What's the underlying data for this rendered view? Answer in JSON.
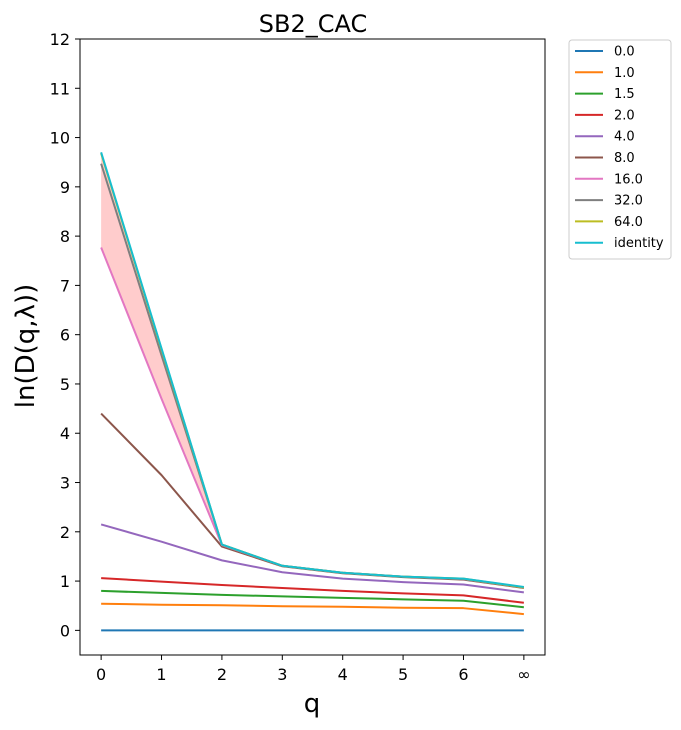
{
  "chart_data": {
    "type": "line",
    "title": "SB2_CAC",
    "xlabel": "q",
    "ylabel": "ln(D(q,λ))",
    "x_positions": [
      0,
      1,
      2,
      3,
      4,
      5,
      6,
      7
    ],
    "x_tick_labels": [
      "0",
      "1",
      "2",
      "3",
      "4",
      "5",
      "6",
      "∞"
    ],
    "ylim": [
      -0.5,
      12
    ],
    "y_ticks": [
      0,
      1,
      2,
      3,
      4,
      5,
      6,
      7,
      8,
      9,
      10,
      11,
      12
    ],
    "grid": false,
    "legend_position": "outside-top-right",
    "shaded_band": {
      "color": "#ffcccc",
      "lower_series": "16.0",
      "upper_series": "identity"
    },
    "series": [
      {
        "name": "0.0",
        "color": "#1f77b4",
        "values": [
          0,
          0,
          0,
          0,
          0,
          0,
          0,
          0
        ]
      },
      {
        "name": "1.0",
        "color": "#ff7f0e",
        "values": [
          0.54,
          0.52,
          0.51,
          0.49,
          0.48,
          0.46,
          0.45,
          0.33
        ]
      },
      {
        "name": "1.5",
        "color": "#2ca02c",
        "values": [
          0.8,
          0.76,
          0.72,
          0.69,
          0.66,
          0.63,
          0.6,
          0.47
        ]
      },
      {
        "name": "2.0",
        "color": "#d62728",
        "values": [
          1.06,
          0.99,
          0.92,
          0.86,
          0.8,
          0.75,
          0.71,
          0.56
        ]
      },
      {
        "name": "4.0",
        "color": "#9467bd",
        "values": [
          2.15,
          1.8,
          1.42,
          1.18,
          1.05,
          0.98,
          0.93,
          0.77
        ]
      },
      {
        "name": "8.0",
        "color": "#8c564b",
        "values": [
          4.4,
          3.15,
          1.7,
          1.3,
          1.16,
          1.08,
          1.03,
          0.86
        ]
      },
      {
        "name": "16.0",
        "color": "#e377c2",
        "values": [
          7.77,
          4.7,
          1.73,
          1.31,
          1.17,
          1.09,
          1.04,
          0.87
        ]
      },
      {
        "name": "32.0",
        "color": "#7f7f7f",
        "values": [
          9.47,
          5.58,
          1.74,
          1.31,
          1.17,
          1.09,
          1.04,
          0.87
        ]
      },
      {
        "name": "64.0",
        "color": "#bcbd22",
        "values": [
          9.68,
          5.7,
          1.74,
          1.31,
          1.17,
          1.09,
          1.05,
          0.87
        ]
      },
      {
        "name": "identity",
        "color": "#17becf",
        "values": [
          9.7,
          5.72,
          1.74,
          1.31,
          1.17,
          1.09,
          1.05,
          0.88
        ]
      }
    ]
  }
}
